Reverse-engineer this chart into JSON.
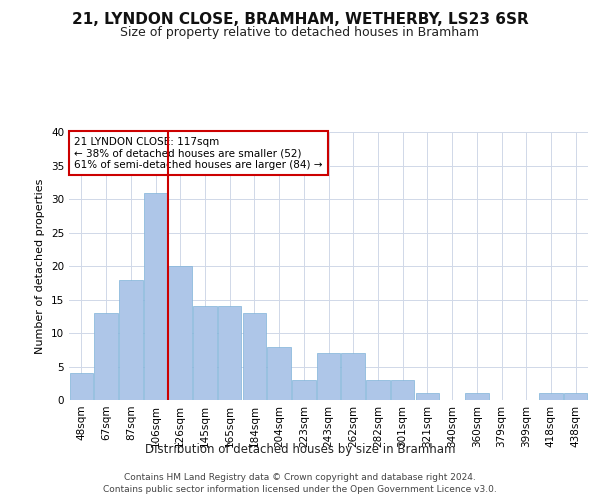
{
  "title": "21, LYNDON CLOSE, BRAMHAM, WETHERBY, LS23 6SR",
  "subtitle": "Size of property relative to detached houses in Bramham",
  "xlabel": "Distribution of detached houses by size in Bramham",
  "ylabel": "Number of detached properties",
  "categories": [
    "48sqm",
    "67sqm",
    "87sqm",
    "106sqm",
    "126sqm",
    "145sqm",
    "165sqm",
    "184sqm",
    "204sqm",
    "223sqm",
    "243sqm",
    "262sqm",
    "282sqm",
    "301sqm",
    "321sqm",
    "340sqm",
    "360sqm",
    "379sqm",
    "399sqm",
    "418sqm",
    "438sqm"
  ],
  "values": [
    4,
    13,
    18,
    31,
    20,
    14,
    14,
    13,
    8,
    3,
    7,
    7,
    3,
    3,
    1,
    0,
    1,
    0,
    0,
    1,
    1
  ],
  "bar_color": "#aec6e8",
  "bar_edgecolor": "#7fb3d9",
  "property_label": "21 LYNDON CLOSE: 117sqm",
  "pct_smaller": 38,
  "n_smaller": 52,
  "pct_larger": 61,
  "n_larger": 84,
  "red_line_index": 3,
  "annotation_box_color": "#cc0000",
  "ylim": [
    0,
    40
  ],
  "yticks": [
    0,
    5,
    10,
    15,
    20,
    25,
    30,
    35,
    40
  ],
  "footer_line1": "Contains HM Land Registry data © Crown copyright and database right 2024.",
  "footer_line2": "Contains public sector information licensed under the Open Government Licence v3.0.",
  "grid_color": "#d0d8e8",
  "title_fontsize": 11,
  "subtitle_fontsize": 9,
  "ylabel_fontsize": 8,
  "tick_fontsize": 7.5,
  "footer_fontsize": 6.5
}
